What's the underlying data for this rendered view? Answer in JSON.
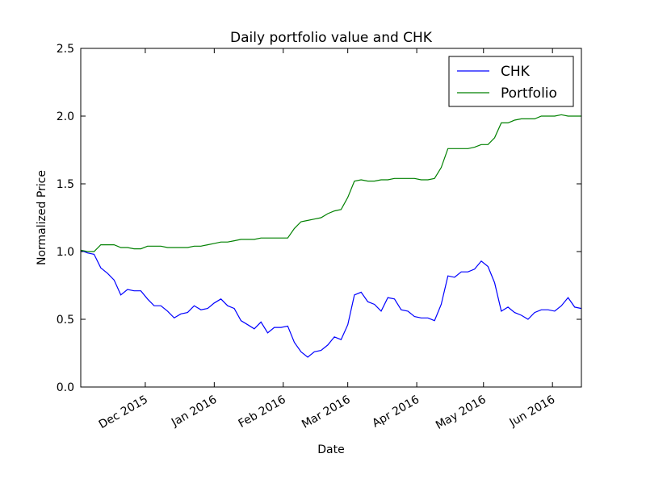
{
  "chart_data": {
    "type": "line",
    "title": "Daily portfolio value and CHK",
    "x_label": "Date",
    "y_label": "Normalized Price",
    "x": [
      0,
      3,
      6,
      9,
      12,
      15,
      18,
      21,
      24,
      27,
      30,
      33,
      36,
      39,
      42,
      45,
      48,
      51,
      54,
      57,
      60,
      63,
      66,
      69,
      72,
      75,
      78,
      81,
      84,
      87,
      90,
      93,
      96,
      99,
      102,
      105,
      108,
      111,
      114,
      117,
      120,
      123,
      126,
      129,
      132,
      135,
      138,
      141,
      144,
      147,
      150,
      153,
      156,
      159,
      162,
      165,
      168,
      171,
      174,
      177,
      180,
      183,
      186,
      189,
      192,
      195,
      198,
      201,
      204,
      207,
      210,
      213,
      216,
      219,
      222,
      225
    ],
    "series": [
      {
        "name": "CHK",
        "color": "#0000ff",
        "values": [
          1.01,
          0.99,
          0.98,
          0.88,
          0.84,
          0.79,
          0.68,
          0.72,
          0.71,
          0.71,
          0.65,
          0.6,
          0.6,
          0.56,
          0.51,
          0.54,
          0.55,
          0.6,
          0.57,
          0.58,
          0.62,
          0.65,
          0.6,
          0.58,
          0.49,
          0.46,
          0.43,
          0.48,
          0.4,
          0.44,
          0.44,
          0.45,
          0.33,
          0.26,
          0.22,
          0.26,
          0.27,
          0.31,
          0.37,
          0.35,
          0.46,
          0.68,
          0.7,
          0.63,
          0.61,
          0.56,
          0.66,
          0.65,
          0.57,
          0.56,
          0.52,
          0.51,
          0.51,
          0.49,
          0.61,
          0.82,
          0.81,
          0.85,
          0.85,
          0.87,
          0.93,
          0.89,
          0.77,
          0.56,
          0.59,
          0.55,
          0.53,
          0.5,
          0.55,
          0.57,
          0.57,
          0.56,
          0.6,
          0.66,
          0.59,
          0.58
        ]
      },
      {
        "name": "Portfolio",
        "color": "#008000",
        "values": [
          1.01,
          1.0,
          1.0,
          1.05,
          1.05,
          1.05,
          1.03,
          1.03,
          1.02,
          1.02,
          1.04,
          1.04,
          1.04,
          1.03,
          1.03,
          1.03,
          1.03,
          1.04,
          1.04,
          1.05,
          1.06,
          1.07,
          1.07,
          1.08,
          1.09,
          1.09,
          1.09,
          1.1,
          1.1,
          1.1,
          1.1,
          1.1,
          1.17,
          1.22,
          1.23,
          1.24,
          1.25,
          1.28,
          1.3,
          1.31,
          1.4,
          1.52,
          1.53,
          1.52,
          1.52,
          1.53,
          1.53,
          1.54,
          1.54,
          1.54,
          1.54,
          1.53,
          1.53,
          1.54,
          1.62,
          1.76,
          1.76,
          1.76,
          1.76,
          1.77,
          1.79,
          1.79,
          1.84,
          1.95,
          1.95,
          1.97,
          1.98,
          1.98,
          1.98,
          2.0,
          2.0,
          2.0,
          2.01,
          2.0,
          2.0,
          2.0
        ]
      }
    ],
    "xlim": [
      0,
      225
    ],
    "xticks": [
      {
        "value": 29,
        "label": "Dec 2015"
      },
      {
        "value": 60,
        "label": "Jan 2016"
      },
      {
        "value": 91,
        "label": "Feb 2016"
      },
      {
        "value": 120,
        "label": "Mar 2016"
      },
      {
        "value": 151,
        "label": "Apr 2016"
      },
      {
        "value": 181,
        "label": "May 2016"
      },
      {
        "value": 212,
        "label": "Jun 2016"
      }
    ],
    "ylim": [
      0,
      2.5
    ],
    "yticks": [
      {
        "value": 0,
        "label": "0.0"
      },
      0.5,
      {
        "value": 1,
        "label": "1.0"
      },
      1.5,
      {
        "value": 2,
        "label": "2.0"
      },
      2.5
    ],
    "grid": false,
    "legend": "upper right"
  }
}
